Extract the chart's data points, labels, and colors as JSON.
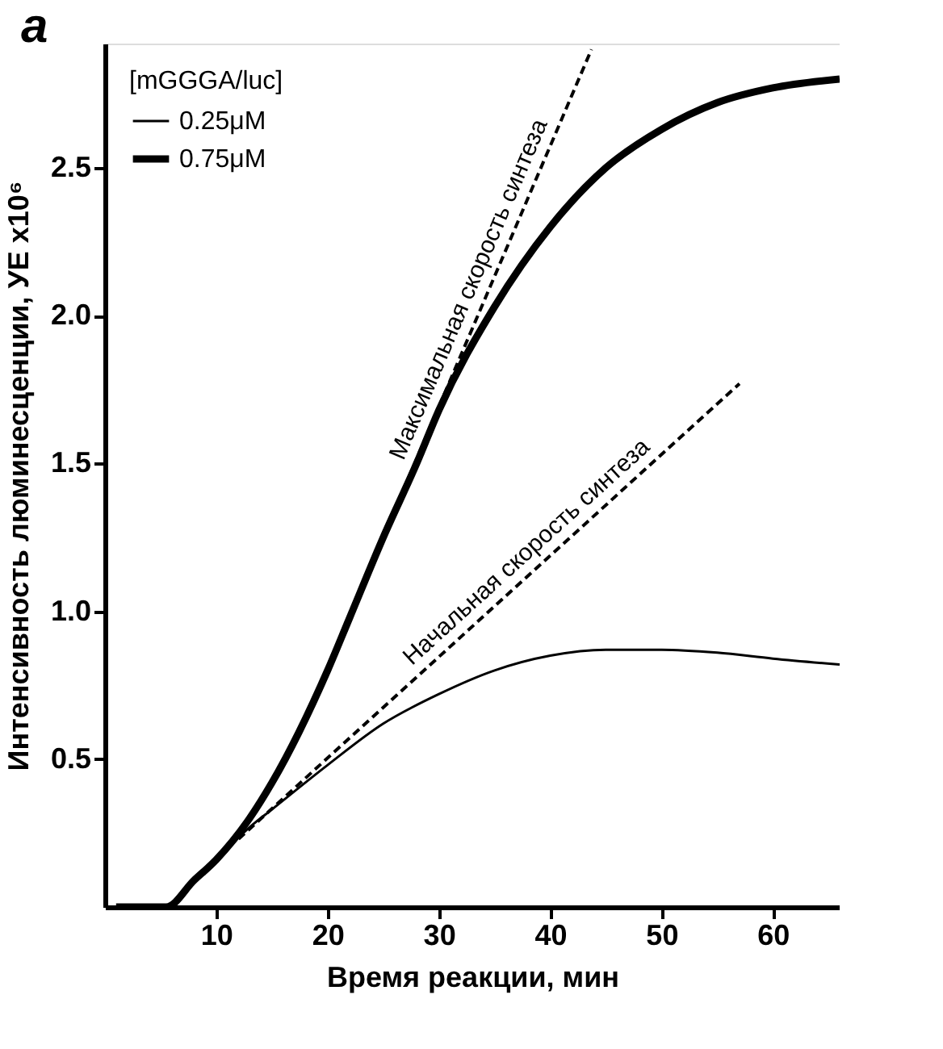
{
  "chart_data": {
    "type": "line",
    "title": "a",
    "xlabel": "Время реакции, мин",
    "ylabel": "Интенсивность люминесценции, УЕ x10⁶",
    "legend_title": "[mGGGA/luc]",
    "legend": "top left",
    "grid": false,
    "marker": "none",
    "xlim": [
      0,
      66
    ],
    "ylim": [
      0,
      2.92
    ],
    "xticks": [
      10,
      20,
      30,
      40,
      50,
      60
    ],
    "yticks": [
      0.5,
      {
        "value": 1,
        "label": "1.0"
      },
      1.5,
      {
        "value": 2,
        "label": "2.0"
      },
      2.5
    ],
    "series": [
      {
        "name": "0.25μM",
        "color": "#000000",
        "line_style": "solid",
        "x": [
          1,
          5.5,
          8,
          10,
          13,
          15,
          20,
          25,
          30,
          35,
          40,
          45,
          50,
          55,
          60,
          66
        ],
        "values": [
          0,
          0,
          0.09,
          0.16,
          0.27,
          0.33,
          0.48,
          0.62,
          0.72,
          0.8,
          0.85,
          0.87,
          0.87,
          0.86,
          0.84,
          0.82
        ]
      },
      {
        "name": "0.75μM",
        "color": "#000000",
        "line_style": "solid",
        "x": [
          1,
          5.5,
          8,
          10,
          13,
          15,
          20,
          22,
          25,
          28,
          30,
          35,
          40,
          45,
          50,
          55,
          60,
          66
        ],
        "values": [
          0,
          0,
          0.09,
          0.16,
          0.3,
          0.42,
          0.8,
          0.98,
          1.25,
          1.5,
          1.68,
          2.03,
          2.3,
          2.5,
          2.63,
          2.72,
          2.77,
          2.8
        ]
      },
      {
        "color": "#000000",
        "line_style": "dashed",
        "x": [
          20,
          43.7
        ],
        "values": [
          0.81,
          2.9
        ]
      },
      {
        "color": "#000000",
        "line_style": "dashed",
        "x": [
          12,
          57
        ],
        "values": [
          0.23,
          1.77
        ]
      }
    ],
    "annotations": [
      "Максимальная скорость синтеза",
      "Начальная скорость синтеза"
    ]
  }
}
